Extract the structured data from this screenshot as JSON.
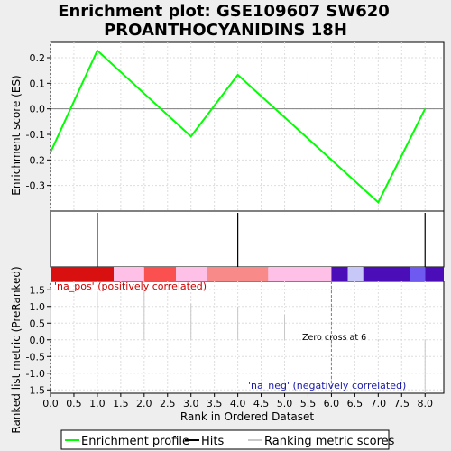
{
  "title_line1": "Enrichment plot: GSE109607 SW620",
  "title_line2": "PROANTHOCYANIDINS 18H",
  "colors": {
    "es_line": "#00ff00",
    "hits": "#000000",
    "metric": "#c8c8c8",
    "pos_text": "#cc0000",
    "neg_text": "#1a1aaa"
  },
  "chart_data": [
    {
      "type": "line",
      "name": "es-panel",
      "ylabel": "Enrichment score (ES)",
      "xlim": [
        0,
        8.4
      ],
      "ylim": [
        -0.4,
        0.26
      ],
      "yticks": [
        0.2,
        0.1,
        0.0,
        -0.1,
        -0.2,
        -0.3
      ],
      "ytick_labels": [
        "0.2",
        "0.1",
        "0.0",
        "-0.1",
        "-0.2",
        "-0.3"
      ],
      "grid": true,
      "series": [
        {
          "name": "Enrichment profile",
          "x": [
            0,
            1,
            3,
            4,
            7,
            8
          ],
          "y": [
            -0.17,
            0.228,
            -0.108,
            0.133,
            -0.366,
            0.0
          ]
        }
      ]
    },
    {
      "type": "bar",
      "name": "hits-panel",
      "hits_x": [
        1,
        4,
        8
      ]
    },
    {
      "type": "heatmap",
      "name": "rank-colorbar",
      "segments": [
        {
          "from": 0.0,
          "to": 1.35,
          "color": "#d81010"
        },
        {
          "from": 1.35,
          "to": 2.0,
          "color": "#ffc0e8"
        },
        {
          "from": 2.0,
          "to": 2.68,
          "color": "#fa5050"
        },
        {
          "from": 2.68,
          "to": 3.35,
          "color": "#ffc0e8"
        },
        {
          "from": 3.35,
          "to": 4.65,
          "color": "#f88a8a"
        },
        {
          "from": 4.65,
          "to": 6.0,
          "color": "#ffc0e8"
        },
        {
          "from": 6.0,
          "to": 6.35,
          "color": "#4a0db8"
        },
        {
          "from": 6.35,
          "to": 6.68,
          "color": "#c8c8f8"
        },
        {
          "from": 6.68,
          "to": 7.68,
          "color": "#4a0db8"
        },
        {
          "from": 7.68,
          "to": 8.0,
          "color": "#6e5af0"
        },
        {
          "from": 8.0,
          "to": 8.4,
          "color": "#4a0db8"
        }
      ]
    },
    {
      "type": "bar",
      "name": "ranked-metric-panel",
      "xlabel": "Rank in Ordered Dataset",
      "ylabel": "Ranked list metric (PreRanked)",
      "xlim": [
        0,
        8.4
      ],
      "ylim": [
        -1.6,
        1.75
      ],
      "xticks": [
        0.0,
        0.5,
        1.0,
        1.5,
        2.0,
        2.5,
        3.0,
        3.5,
        4.0,
        4.5,
        5.0,
        5.5,
        6.0,
        6.5,
        7.0,
        7.5,
        8.0
      ],
      "xtick_labels": [
        "0.0",
        "0.5",
        "1.0",
        "1.5",
        "2.0",
        "2.5",
        "3.0",
        "3.5",
        "4.0",
        "4.5",
        "5.0",
        "5.5",
        "6.0",
        "6.5",
        "7.0",
        "7.5",
        "8.0"
      ],
      "yticks": [
        1.5,
        1.0,
        0.5,
        0.0,
        -0.5,
        -1.0,
        -1.5
      ],
      "ytick_labels": [
        "1.5",
        "1.0",
        "0.5",
        "0.0",
        "-0.5",
        "-1.0",
        "-1.5"
      ],
      "grid": true,
      "metric_x": [
        0,
        1,
        2,
        3,
        4,
        5,
        6,
        7,
        8
      ],
      "metric_values": [
        1.55,
        1.45,
        1.45,
        1.08,
        1.0,
        0.75,
        -0.2,
        -0.05,
        -1.6
      ],
      "zero_cross": 6,
      "annotations": {
        "pos": "'na_pos' (positively correlated)",
        "neg": "'na_neg' (negatively correlated)",
        "zero": "Zero cross at 6"
      }
    }
  ],
  "legend": {
    "items": [
      "Enrichment profile",
      "Hits",
      "Ranking metric scores"
    ]
  }
}
